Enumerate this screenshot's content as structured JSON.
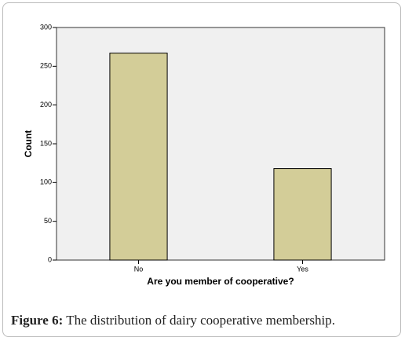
{
  "chart_data": {
    "type": "bar",
    "x_label": "Are you member of cooperative?",
    "y_label": "Count",
    "categories": [
      "No",
      "Yes"
    ],
    "values": [
      267,
      118
    ],
    "color": "#d3cd98",
    "ylim": [
      0,
      300
    ],
    "yticks": [
      0,
      50,
      100,
      150,
      200,
      250,
      300
    ],
    "grid": false,
    "figure_label": "Figure 6:",
    "caption": "The distribution of dairy cooperative membership."
  }
}
